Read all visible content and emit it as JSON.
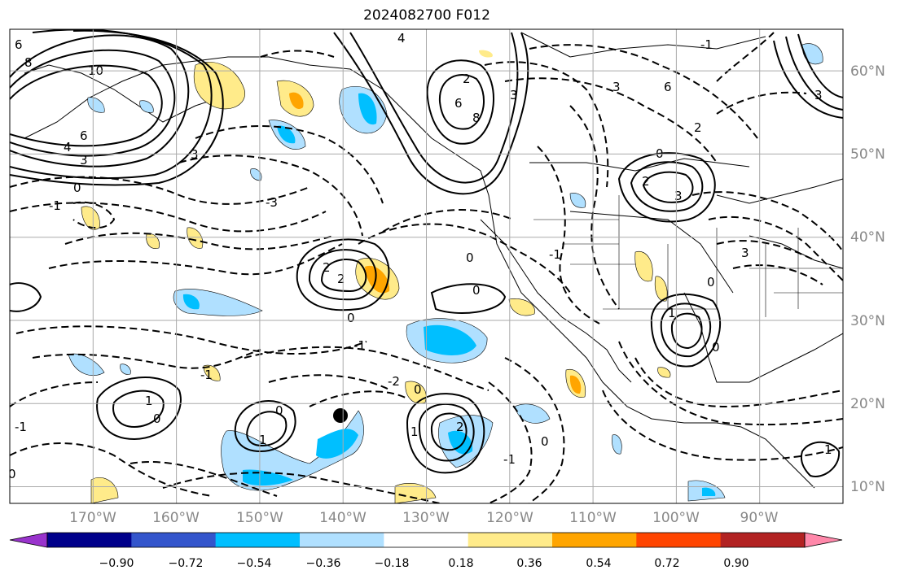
{
  "title": "2024082700 F012",
  "map": {
    "lon_range": [
      -180,
      -80
    ],
    "lat_range": [
      8,
      65
    ],
    "lon_ticks": [
      "170°W",
      "160°W",
      "150°W",
      "140°W",
      "130°W",
      "120°W",
      "110°W",
      "100°W",
      "90°W"
    ],
    "lat_ticks": [
      "60°N",
      "50°N",
      "40°N",
      "30°N",
      "20°N",
      "10°N"
    ],
    "contour_labels": [
      "6",
      "8",
      "10",
      "6",
      "4",
      "3",
      "3",
      "0",
      "-1",
      "-3",
      "4",
      "6",
      "8",
      "3",
      "3",
      "6",
      "2",
      "0",
      "3",
      "2",
      "3",
      "3",
      "0",
      "2",
      "2",
      "0",
      "0",
      "-1",
      "-2",
      "0",
      "0",
      "2",
      "1",
      "0",
      "1",
      "0",
      "-1",
      "1",
      "0",
      "-1",
      "1",
      "0",
      "-1",
      "2",
      "-1",
      "1",
      "0",
      "-1"
    ]
  },
  "colorbar": {
    "ticks": [
      "−0.90",
      "−0.72",
      "−0.54",
      "−0.36",
      "−0.18",
      "0.18",
      "0.36",
      "0.54",
      "0.72",
      "0.90"
    ],
    "colors": [
      "#9933cc",
      "#00008b",
      "#3355cc",
      "#00bfff",
      "#b0e0ff",
      "#ffffff",
      "#ffeb8a",
      "#ffa500",
      "#ff4500",
      "#b22222",
      "#ff88aa"
    ]
  }
}
